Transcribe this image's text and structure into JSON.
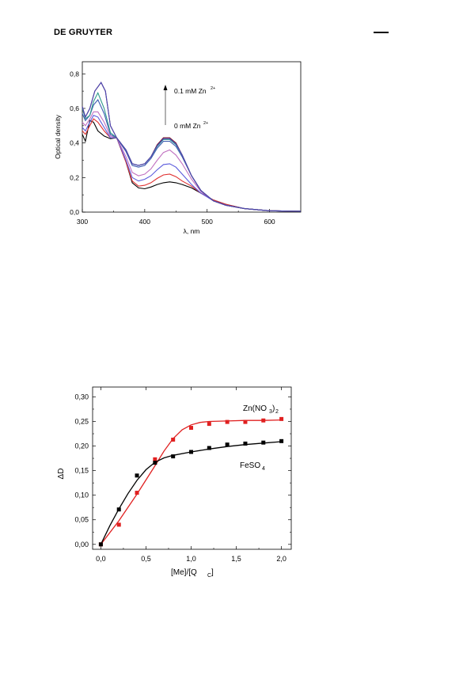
{
  "header": {
    "brand": "DE GRUYTER"
  },
  "chart_data": [
    {
      "type": "line",
      "xlabel": "λ, nm",
      "ylabel": "Optical density",
      "xlim": [
        300,
        650
      ],
      "ylim": [
        0.0,
        0.87
      ],
      "x_ticks": [
        "300",
        "400",
        "500",
        "600"
      ],
      "y_ticks": [
        "0,0",
        "0,2",
        "0,4",
        "0,6",
        "0,8"
      ],
      "annotations": {
        "top": "0.1 mM Zn",
        "top_sup": "2+",
        "bottom": "0 mM Zn",
        "bottom_sup": "2+"
      },
      "series": [
        {
          "color": "#000000",
          "values": [
            [
              300,
              0.45
            ],
            [
              305,
              0.41
            ],
            [
              312,
              0.53
            ],
            [
              318,
              0.52
            ],
            [
              325,
              0.47
            ],
            [
              335,
              0.44
            ],
            [
              345,
              0.425
            ],
            [
              355,
              0.43
            ],
            [
              370,
              0.29
            ],
            [
              380,
              0.17
            ],
            [
              390,
              0.14
            ],
            [
              400,
              0.135
            ],
            [
              410,
              0.145
            ],
            [
              420,
              0.16
            ],
            [
              430,
              0.17
            ],
            [
              440,
              0.175
            ],
            [
              450,
              0.17
            ],
            [
              460,
              0.16
            ],
            [
              475,
              0.14
            ],
            [
              490,
              0.11
            ],
            [
              510,
              0.07
            ],
            [
              530,
              0.045
            ],
            [
              560,
              0.02
            ],
            [
              600,
              0.008
            ],
            [
              650,
              0.005
            ]
          ]
        },
        {
          "color": "#e03030",
          "values": [
            [
              300,
              0.47
            ],
            [
              305,
              0.45
            ],
            [
              312,
              0.5
            ],
            [
              318,
              0.54
            ],
            [
              325,
              0.52
            ],
            [
              335,
              0.47
            ],
            [
              345,
              0.43
            ],
            [
              355,
              0.43
            ],
            [
              370,
              0.29
            ],
            [
              380,
              0.18
            ],
            [
              390,
              0.15
            ],
            [
              400,
              0.155
            ],
            [
              410,
              0.17
            ],
            [
              420,
              0.195
            ],
            [
              430,
              0.215
            ],
            [
              440,
              0.22
            ],
            [
              450,
              0.205
            ],
            [
              460,
              0.18
            ],
            [
              475,
              0.15
            ],
            [
              490,
              0.11
            ],
            [
              510,
              0.07
            ],
            [
              530,
              0.045
            ],
            [
              560,
              0.02
            ],
            [
              600,
              0.008
            ],
            [
              650,
              0.005
            ]
          ]
        },
        {
          "color": "#5a5adc",
          "values": [
            [
              300,
              0.49
            ],
            [
              305,
              0.47
            ],
            [
              312,
              0.52
            ],
            [
              318,
              0.56
            ],
            [
              325,
              0.55
            ],
            [
              335,
              0.49
            ],
            [
              345,
              0.43
            ],
            [
              355,
              0.43
            ],
            [
              370,
              0.3
            ],
            [
              380,
              0.2
            ],
            [
              390,
              0.18
            ],
            [
              400,
              0.19
            ],
            [
              410,
              0.21
            ],
            [
              420,
              0.245
            ],
            [
              430,
              0.275
            ],
            [
              440,
              0.28
            ],
            [
              450,
              0.26
            ],
            [
              460,
              0.22
            ],
            [
              475,
              0.16
            ],
            [
              490,
              0.11
            ],
            [
              510,
              0.065
            ],
            [
              530,
              0.04
            ],
            [
              560,
              0.02
            ],
            [
              600,
              0.008
            ],
            [
              650,
              0.005
            ]
          ]
        },
        {
          "color": "#c070c0",
          "values": [
            [
              300,
              0.52
            ],
            [
              305,
              0.5
            ],
            [
              312,
              0.54
            ],
            [
              318,
              0.58
            ],
            [
              325,
              0.58
            ],
            [
              335,
              0.52
            ],
            [
              345,
              0.44
            ],
            [
              355,
              0.43
            ],
            [
              370,
              0.32
            ],
            [
              380,
              0.23
            ],
            [
              390,
              0.21
            ],
            [
              400,
              0.22
            ],
            [
              410,
              0.25
            ],
            [
              420,
              0.3
            ],
            [
              430,
              0.345
            ],
            [
              440,
              0.36
            ],
            [
              450,
              0.33
            ],
            [
              460,
              0.28
            ],
            [
              475,
              0.19
            ],
            [
              490,
              0.12
            ],
            [
              510,
              0.065
            ],
            [
              530,
              0.04
            ],
            [
              560,
              0.02
            ],
            [
              600,
              0.008
            ],
            [
              650,
              0.005
            ]
          ]
        },
        {
          "color": "#3a5ab0",
          "values": [
            [
              300,
              0.57
            ],
            [
              305,
              0.53
            ],
            [
              312,
              0.56
            ],
            [
              318,
              0.62
            ],
            [
              325,
              0.65
            ],
            [
              335,
              0.57
            ],
            [
              345,
              0.45
            ],
            [
              355,
              0.43
            ],
            [
              370,
              0.35
            ],
            [
              380,
              0.27
            ],
            [
              390,
              0.26
            ],
            [
              400,
              0.27
            ],
            [
              410,
              0.31
            ],
            [
              420,
              0.37
            ],
            [
              430,
              0.41
            ],
            [
              440,
              0.41
            ],
            [
              450,
              0.38
            ],
            [
              460,
              0.32
            ],
            [
              475,
              0.21
            ],
            [
              490,
              0.125
            ],
            [
              510,
              0.065
            ],
            [
              530,
              0.04
            ],
            [
              560,
              0.02
            ],
            [
              600,
              0.008
            ],
            [
              650,
              0.005
            ]
          ]
        },
        {
          "color": "#2e9a8a",
          "values": [
            [
              300,
              0.6
            ],
            [
              305,
              0.54
            ],
            [
              312,
              0.56
            ],
            [
              318,
              0.64
            ],
            [
              325,
              0.69
            ],
            [
              335,
              0.6
            ],
            [
              345,
              0.46
            ],
            [
              355,
              0.43
            ],
            [
              370,
              0.36
            ],
            [
              380,
              0.28
            ],
            [
              390,
              0.27
            ],
            [
              400,
              0.28
            ],
            [
              410,
              0.32
            ],
            [
              420,
              0.38
            ],
            [
              430,
              0.42
            ],
            [
              440,
              0.42
            ],
            [
              450,
              0.39
            ],
            [
              460,
              0.33
            ],
            [
              475,
              0.21
            ],
            [
              490,
              0.125
            ],
            [
              510,
              0.065
            ],
            [
              530,
              0.04
            ],
            [
              560,
              0.02
            ],
            [
              600,
              0.008
            ],
            [
              650,
              0.005
            ]
          ]
        },
        {
          "color": "#7a1020",
          "values": [
            [
              300,
              0.61
            ],
            [
              305,
              0.55
            ],
            [
              312,
              0.6
            ],
            [
              320,
              0.7
            ],
            [
              330,
              0.75
            ],
            [
              337,
              0.7
            ],
            [
              345,
              0.5
            ],
            [
              355,
              0.43
            ],
            [
              370,
              0.36
            ],
            [
              380,
              0.28
            ],
            [
              390,
              0.27
            ],
            [
              400,
              0.28
            ],
            [
              410,
              0.32
            ],
            [
              420,
              0.39
            ],
            [
              430,
              0.43
            ],
            [
              440,
              0.43
            ],
            [
              450,
              0.4
            ],
            [
              460,
              0.33
            ],
            [
              475,
              0.21
            ],
            [
              490,
              0.125
            ],
            [
              510,
              0.065
            ],
            [
              530,
              0.04
            ],
            [
              560,
              0.02
            ],
            [
              600,
              0.008
            ],
            [
              650,
              0.005
            ]
          ]
        },
        {
          "color": "#4a4ab8",
          "values": [
            [
              300,
              0.61
            ],
            [
              305,
              0.55
            ],
            [
              312,
              0.6
            ],
            [
              320,
              0.7
            ],
            [
              330,
              0.75
            ],
            [
              337,
              0.7
            ],
            [
              345,
              0.5
            ],
            [
              355,
              0.43
            ],
            [
              370,
              0.36
            ],
            [
              380,
              0.28
            ],
            [
              390,
              0.27
            ],
            [
              400,
              0.28
            ],
            [
              410,
              0.32
            ],
            [
              420,
              0.385
            ],
            [
              430,
              0.425
            ],
            [
              440,
              0.425
            ],
            [
              450,
              0.395
            ],
            [
              460,
              0.33
            ],
            [
              475,
              0.21
            ],
            [
              490,
              0.125
            ],
            [
              510,
              0.065
            ],
            [
              530,
              0.04
            ],
            [
              560,
              0.02
            ],
            [
              600,
              0.008
            ],
            [
              650,
              0.005
            ]
          ]
        }
      ]
    },
    {
      "type": "scatter",
      "xlabel": "[Me]/[Q",
      "xlabel_sub": "C",
      "xlabel_end": "]",
      "ylabel": "ΔD",
      "xlim": [
        -0.1,
        2.1
      ],
      "ylim": [
        -0.01,
        0.32
      ],
      "x_ticks": [
        "0,0",
        "0,5",
        "1,0",
        "1,5",
        "2,0"
      ],
      "y_ticks": [
        "0,00",
        "0,05",
        "0,10",
        "0,15",
        "0,20",
        "0,25",
        "0,30"
      ],
      "series": [
        {
          "name": "Zn(NO",
          "name_sub": "3",
          "name_mid": ")",
          "name_sub2": "2",
          "color": "#e02020",
          "x": [
            0.0,
            0.2,
            0.4,
            0.6,
            0.8,
            1.0,
            1.2,
            1.4,
            1.6,
            1.8,
            2.0
          ],
          "y": [
            0.0,
            0.04,
            0.105,
            0.173,
            0.213,
            0.237,
            0.245,
            0.249,
            0.249,
            0.252,
            0.255
          ],
          "fit": [
            [
              0.0,
              0.0
            ],
            [
              0.2,
              0.048
            ],
            [
              0.4,
              0.102
            ],
            [
              0.6,
              0.16
            ],
            [
              0.7,
              0.19
            ],
            [
              0.8,
              0.215
            ],
            [
              0.9,
              0.233
            ],
            [
              1.0,
              0.243
            ],
            [
              1.1,
              0.248
            ],
            [
              1.2,
              0.25
            ],
            [
              1.4,
              0.251
            ],
            [
              1.6,
              0.252
            ],
            [
              1.8,
              0.252
            ],
            [
              2.0,
              0.253
            ]
          ]
        },
        {
          "name": "FeSO",
          "name_sub": "4",
          "color": "#000000",
          "x": [
            0.0,
            0.2,
            0.4,
            0.6,
            0.8,
            1.0,
            1.2,
            1.4,
            1.6,
            1.8,
            2.0
          ],
          "y": [
            0.0,
            0.071,
            0.14,
            0.166,
            0.179,
            0.188,
            0.196,
            0.203,
            0.205,
            0.207,
            0.21
          ],
          "fit": [
            [
              0.0,
              0.0
            ],
            [
              0.1,
              0.038
            ],
            [
              0.2,
              0.072
            ],
            [
              0.3,
              0.103
            ],
            [
              0.4,
              0.13
            ],
            [
              0.5,
              0.152
            ],
            [
              0.6,
              0.167
            ],
            [
              0.7,
              0.176
            ],
            [
              0.8,
              0.181
            ],
            [
              1.0,
              0.188
            ],
            [
              1.2,
              0.194
            ],
            [
              1.4,
              0.199
            ],
            [
              1.6,
              0.203
            ],
            [
              1.8,
              0.206
            ],
            [
              2.0,
              0.209
            ]
          ]
        }
      ]
    }
  ]
}
